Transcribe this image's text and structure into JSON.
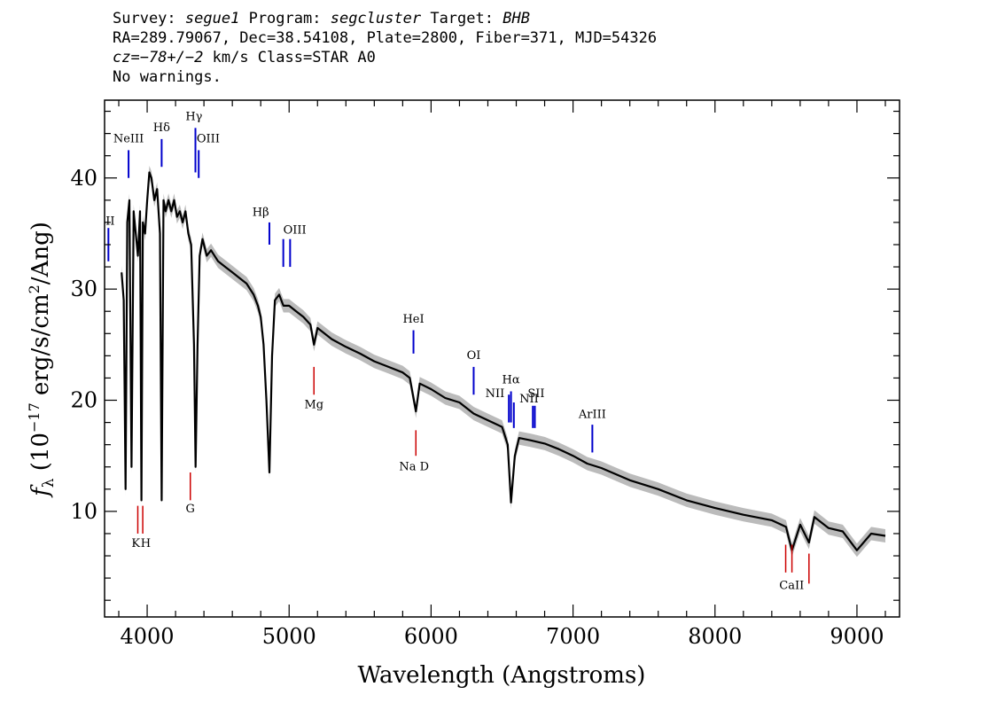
{
  "header": {
    "survey_label": "Survey:",
    "survey": "segue1",
    "program_label": "Program:",
    "program": "segcluster",
    "target_label": "Target:",
    "target": "BHB",
    "line2": "RA=289.79067, Dec=38.54108, Plate=2800, Fiber=371, MJD=54326",
    "cz_label": "cz=",
    "cz_value": "−78+/−2",
    "cz_unit": " km/s Class=STAR A0",
    "line4": "No warnings."
  },
  "chart_data": {
    "type": "line",
    "xlabel": "Wavelength (Angstroms)",
    "ylabel": "f_λ (10^-17 erg/s/cm^2/Ang)",
    "xlim": [
      3700,
      9300
    ],
    "ylim": [
      0.5,
      47
    ],
    "x_ticks": [
      4000,
      5000,
      6000,
      7000,
      8000,
      9000
    ],
    "y_ticks": [
      10,
      20,
      30,
      40
    ],
    "series": [
      {
        "color": "#000000",
        "error_band_color": "#bbbbbb",
        "x": [
          3820,
          3835,
          3848,
          3860,
          3875,
          3890,
          3905,
          3920,
          3935,
          3950,
          3960,
          3970,
          3985,
          4000,
          4015,
          4030,
          4050,
          4070,
          4090,
          4102,
          4115,
          4130,
          4150,
          4170,
          4190,
          4210,
          4230,
          4250,
          4270,
          4290,
          4310,
          4330,
          4341,
          4355,
          4370,
          4390,
          4420,
          4450,
          4500,
          4550,
          4600,
          4650,
          4700,
          4750,
          4780,
          4800,
          4820,
          4840,
          4861,
          4880,
          4900,
          4930,
          4960,
          5000,
          5050,
          5100,
          5150,
          5175,
          5200,
          5300,
          5400,
          5500,
          5600,
          5700,
          5800,
          5850,
          5893,
          5920,
          6000,
          6100,
          6200,
          6300,
          6400,
          6500,
          6540,
          6563,
          6590,
          6620,
          6700,
          6800,
          6900,
          7000,
          7100,
          7200,
          7400,
          7600,
          7800,
          8000,
          8200,
          8400,
          8500,
          8542,
          8600,
          8662,
          8700,
          8800,
          8900,
          9000,
          9100,
          9200
        ],
        "y": [
          31.5,
          29,
          12,
          36,
          38,
          14,
          37,
          35,
          33,
          37,
          11,
          36,
          35,
          38,
          40.5,
          40,
          38,
          39,
          35,
          11,
          38,
          37,
          38,
          37,
          38,
          36.5,
          37,
          36,
          37,
          35,
          34,
          25,
          14,
          25,
          33,
          34.5,
          33,
          33.5,
          32.5,
          32,
          31.5,
          31,
          30.5,
          29.5,
          28.5,
          27.5,
          25,
          20,
          13.5,
          24,
          29,
          29.5,
          28.5,
          28.5,
          28,
          27.5,
          26.8,
          25,
          26.5,
          25.5,
          24.8,
          24.2,
          23.5,
          23,
          22.5,
          22,
          19,
          21.5,
          21,
          20.2,
          19.8,
          18.8,
          18.2,
          17.6,
          16,
          10.8,
          15,
          16.6,
          16.4,
          16.1,
          15.6,
          15,
          14.3,
          13.9,
          12.8,
          12,
          11,
          10.3,
          9.7,
          9.2,
          8.6,
          6.5,
          8.8,
          7.2,
          9.5,
          8.5,
          8.2,
          6.5,
          8,
          7.8
        ]
      }
    ],
    "emission_lines": [
      {
        "label": "OII",
        "wavelength": 3727,
        "y0": 32.5,
        "y1": 35.5
      },
      {
        "label": "NeIII",
        "wavelength": 3869,
        "y0": 40,
        "y1": 42.5
      },
      {
        "label": "Hδ",
        "wavelength": 4102,
        "y0": 41,
        "y1": 43.5
      },
      {
        "label": "Hγ",
        "wavelength": 4340,
        "y0": 40.5,
        "y1": 44.5
      },
      {
        "label": "OIII",
        "wavelength": 4363,
        "y0": 40,
        "y1": 42.5
      },
      {
        "label": "Hβ",
        "wavelength": 4861,
        "y0": 34,
        "y1": 36
      },
      {
        "label": "OIII",
        "wavelength": 4959,
        "y0": 32,
        "y1": 34.5
      },
      {
        "label": "OIII",
        "wavelength": 5007,
        "y0": 32,
        "y1": 34.5
      },
      {
        "label": "HeI",
        "wavelength": 5876,
        "y0": 24.2,
        "y1": 26.3
      },
      {
        "label": "OI",
        "wavelength": 6300,
        "y0": 20.5,
        "y1": 23
      },
      {
        "label": "NII",
        "wavelength": 6548,
        "y0": 18,
        "y1": 20.5
      },
      {
        "label": "Hα",
        "wavelength": 6563,
        "y0": 18,
        "y1": 20.8
      },
      {
        "label": "NII",
        "wavelength": 6583,
        "y0": 17.5,
        "y1": 19.8
      },
      {
        "label": "SII",
        "wavelength": 6717,
        "y0": 17.5,
        "y1": 19.5
      },
      {
        "label": "SII",
        "wavelength": 6731,
        "y0": 17.5,
        "y1": 19.5
      },
      {
        "label": "ArIII",
        "wavelength": 7136,
        "y0": 15.3,
        "y1": 17.8
      }
    ],
    "absorption_lines": [
      {
        "label": "K",
        "wavelength": 3934,
        "y0": 8,
        "y1": 10.5
      },
      {
        "label": "H",
        "wavelength": 3969,
        "y0": 8,
        "y1": 10.5
      },
      {
        "label": "G",
        "wavelength": 4304,
        "y0": 11,
        "y1": 13.5
      },
      {
        "label": "Mg",
        "wavelength": 5175,
        "y0": 20.5,
        "y1": 23
      },
      {
        "label": "Na D",
        "wavelength": 5893,
        "y0": 15,
        "y1": 17.3
      },
      {
        "label": "CaII",
        "wavelength": 8498,
        "y0": 4.5,
        "y1": 7
      },
      {
        "label": "CaII",
        "wavelength": 8542,
        "y0": 4.5,
        "y1": 7
      },
      {
        "label": "CaII",
        "wavelength": 8662,
        "y0": 3.5,
        "y1": 6.2
      }
    ],
    "line_labels": [
      {
        "text": "II",
        "x": 3740,
        "y": 35.8,
        "class": "emission"
      },
      {
        "text": "NeIII",
        "x": 3869,
        "y": 43.2,
        "class": "emission"
      },
      {
        "text": "Hδ",
        "x": 4102,
        "y": 44.2,
        "class": "emission"
      },
      {
        "text": "Hγ",
        "x": 4330,
        "y": 45.2,
        "class": "emission"
      },
      {
        "text": "OIII",
        "x": 4430,
        "y": 43.2,
        "class": "emission"
      },
      {
        "text": "Hβ",
        "x": 4800,
        "y": 36.6,
        "class": "emission"
      },
      {
        "text": "OIII",
        "x": 5040,
        "y": 35.0,
        "class": "emission"
      },
      {
        "text": "HeI",
        "x": 5876,
        "y": 27.0,
        "class": "emission"
      },
      {
        "text": "OI",
        "x": 6300,
        "y": 23.7,
        "class": "emission"
      },
      {
        "text": "NII",
        "x": 6450,
        "y": 20.3,
        "class": "emission"
      },
      {
        "text": "Hα",
        "x": 6563,
        "y": 21.5,
        "class": "emission"
      },
      {
        "text": "NII",
        "x": 6690,
        "y": 19.8,
        "class": "emission"
      },
      {
        "text": "SII",
        "x": 6740,
        "y": 20.3,
        "class": "emission"
      },
      {
        "text": "ArIII",
        "x": 7136,
        "y": 18.4,
        "class": "emission"
      },
      {
        "text": "K",
        "x": 3920,
        "y": 6.8,
        "class": "absorption"
      },
      {
        "text": "H",
        "x": 3990,
        "y": 6.8,
        "class": "absorption"
      },
      {
        "text": "G",
        "x": 4304,
        "y": 9.9,
        "class": "absorption"
      },
      {
        "text": "Mg",
        "x": 5175,
        "y": 19.3,
        "class": "absorption"
      },
      {
        "text": "Na  D",
        "x": 5880,
        "y": 13.7,
        "class": "absorption"
      },
      {
        "text": "CaII",
        "x": 8540,
        "y": 3.0,
        "class": "absorption"
      }
    ],
    "emission_color": "#0000cc",
    "absorption_color": "#cc0000",
    "grid": false,
    "legend": "none"
  }
}
